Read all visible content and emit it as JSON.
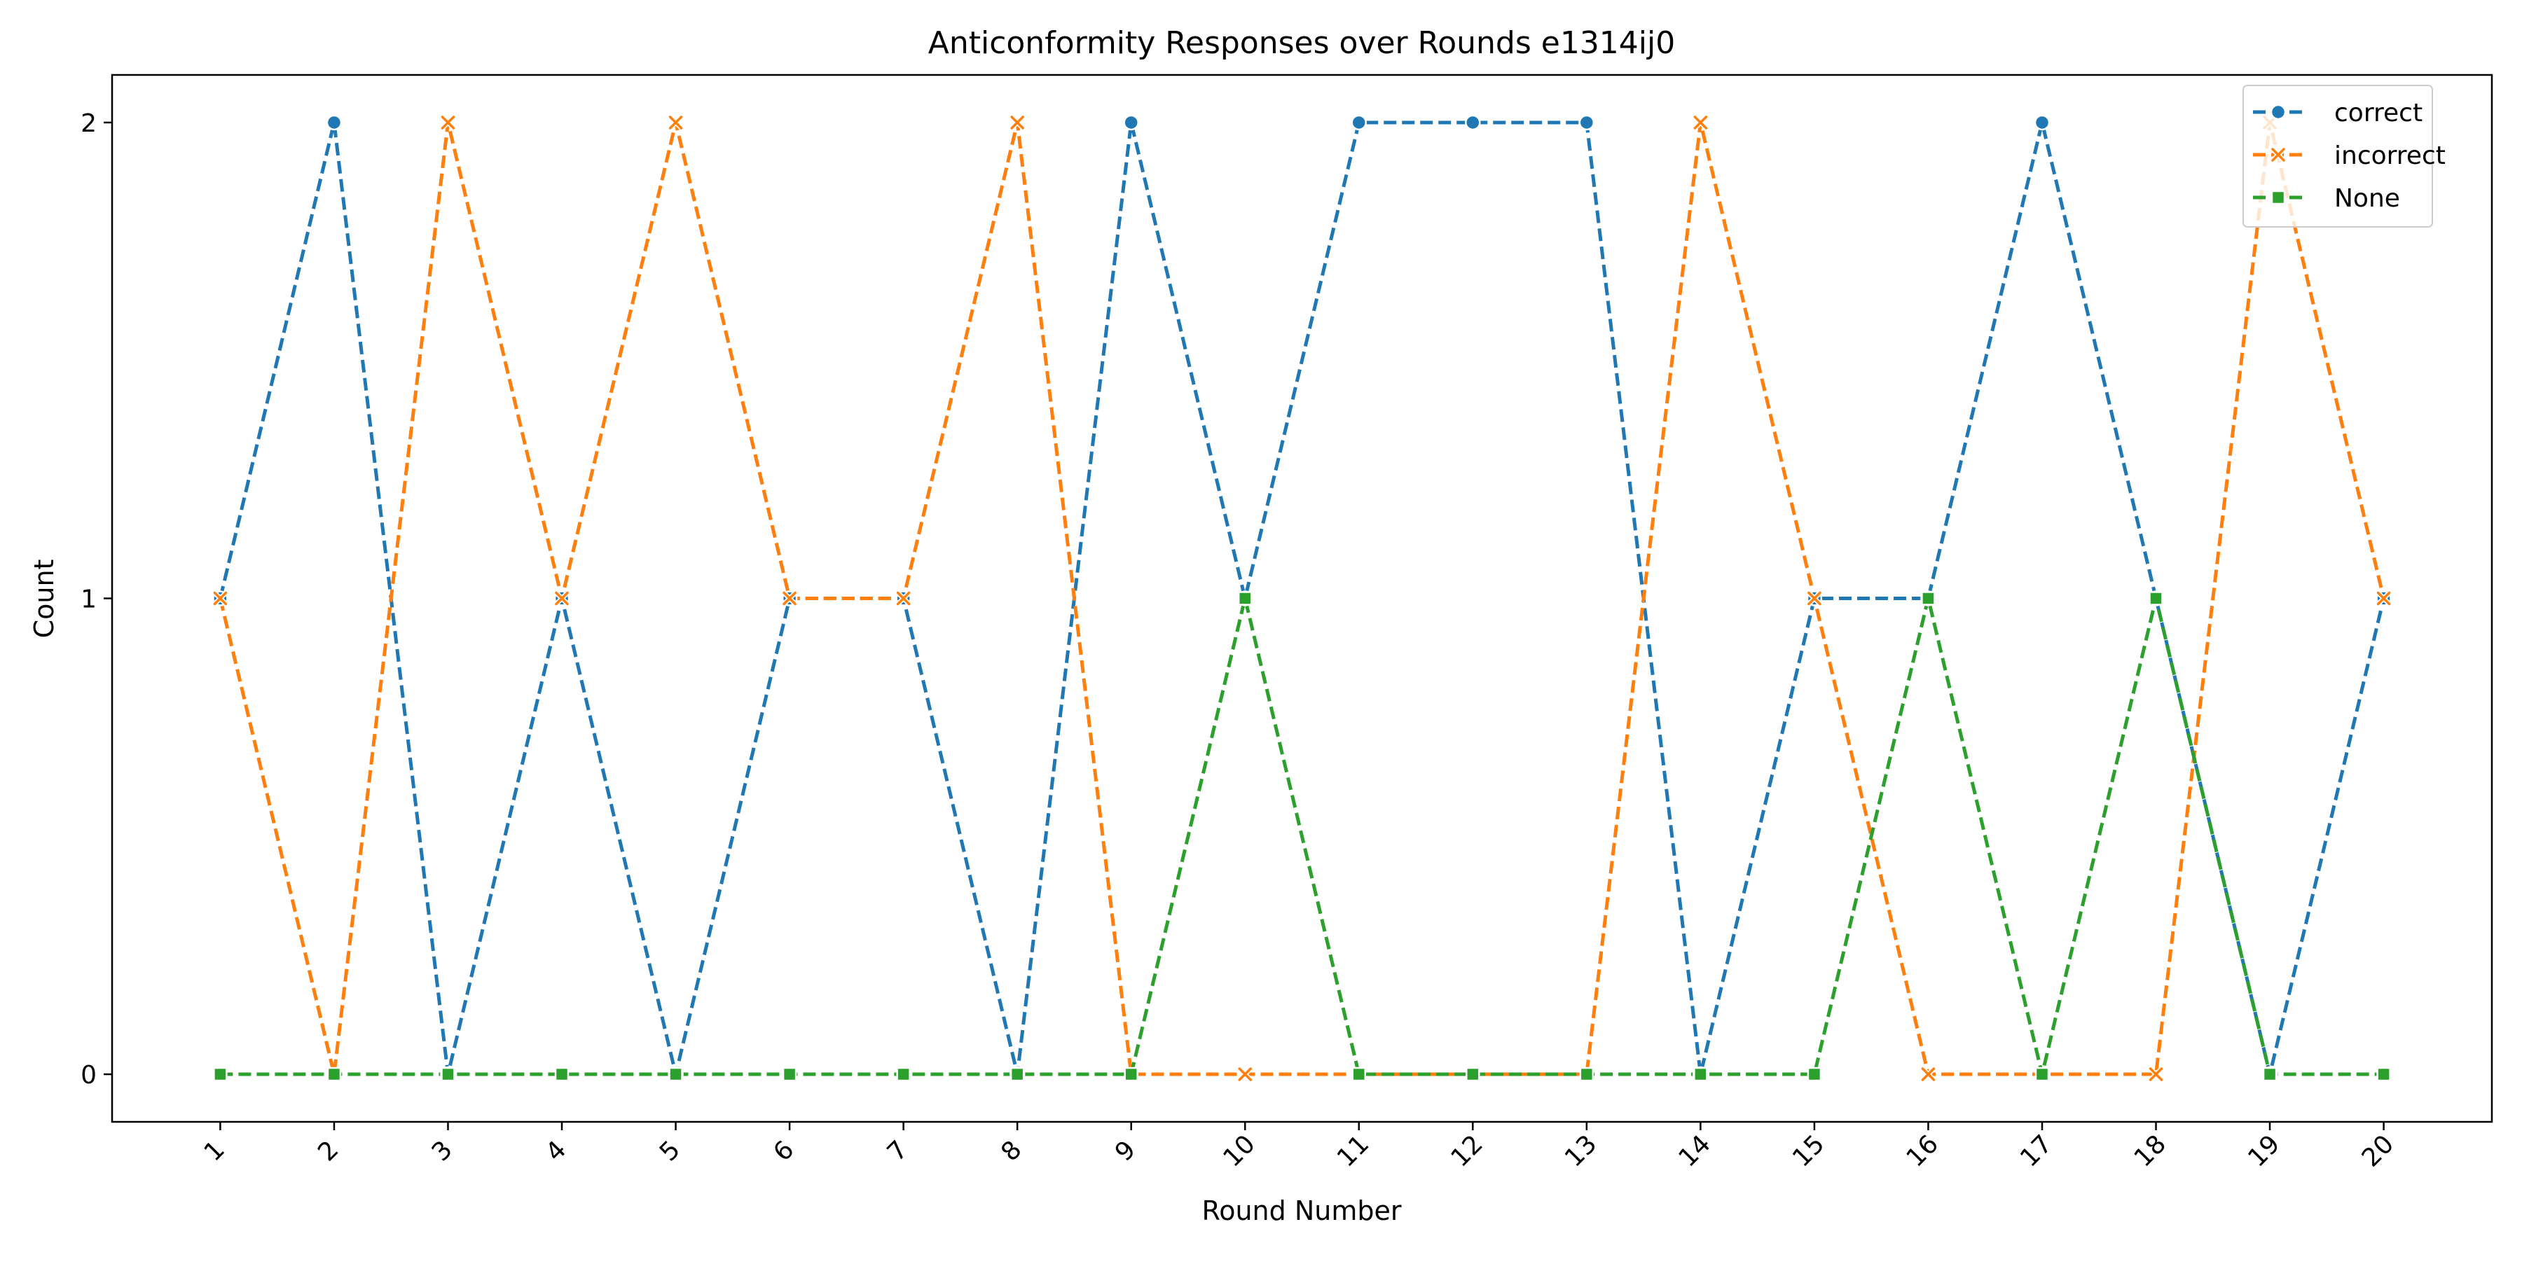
{
  "chart_data": {
    "type": "line",
    "title": "Anticonformity Responses over Rounds e1314ij0",
    "xlabel": "Round Number",
    "ylabel": "Count",
    "x": [
      1,
      2,
      3,
      4,
      5,
      6,
      7,
      8,
      9,
      10,
      11,
      12,
      13,
      14,
      15,
      16,
      17,
      18,
      19,
      20
    ],
    "x_tick_labels": [
      "1",
      "2",
      "3",
      "4",
      "5",
      "6",
      "7",
      "8",
      "9",
      "10",
      "11",
      "12",
      "13",
      "14",
      "15",
      "16",
      "17",
      "18",
      "19",
      "20"
    ],
    "y_ticks": [
      0,
      1,
      2
    ],
    "y_tick_labels": [
      "0",
      "1",
      "2"
    ],
    "xlim": [
      0.05,
      20.95
    ],
    "ylim": [
      -0.1,
      2.1
    ],
    "grid": false,
    "legend_position": "top-right",
    "series": [
      {
        "name": "correct",
        "color": "#1f77b4",
        "marker": "circle",
        "linestyle": "dashed",
        "values": [
          1,
          2,
          0,
          1,
          0,
          1,
          1,
          0,
          2,
          1,
          2,
          2,
          2,
          0,
          1,
          1,
          2,
          1,
          0,
          1
        ]
      },
      {
        "name": "incorrect",
        "color": "#ff7f0e",
        "marker": "x",
        "linestyle": "dashed",
        "values": [
          1,
          0,
          2,
          1,
          2,
          1,
          1,
          2,
          0,
          0,
          0,
          0,
          0,
          2,
          1,
          0,
          0,
          0,
          2,
          1
        ]
      },
      {
        "name": "None",
        "color": "#2ca02c",
        "marker": "square",
        "linestyle": "dashed",
        "values": [
          0,
          0,
          0,
          0,
          0,
          0,
          0,
          0,
          0,
          1,
          0,
          0,
          0,
          0,
          0,
          1,
          0,
          1,
          0,
          0
        ]
      }
    ]
  }
}
